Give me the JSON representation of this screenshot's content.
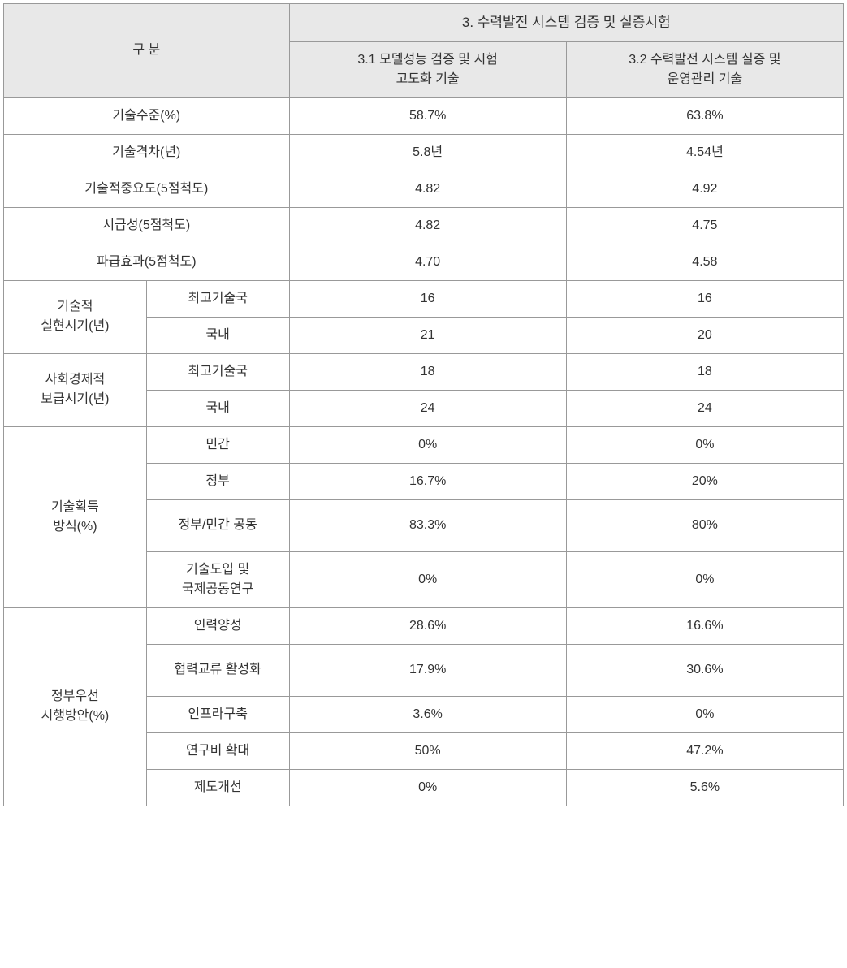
{
  "table": {
    "header_colors": {
      "bg": "#e8e8e8",
      "border": "#999999",
      "text": "#333333"
    },
    "col_widths": [
      "17%",
      "17%",
      "33%",
      "33%"
    ],
    "font_family": "Malgun Gothic",
    "font_size_base": 16,
    "row_header_span": "구  분",
    "group_header": "3. 수력발전 시스템 검증 및 실증시험",
    "col_headers": {
      "c1": "3.1 모델성능 검증 및 시험\n고도화 기술",
      "c2": "3.2 수력발전 시스템 실증 및\n운영관리 기술"
    },
    "rows": {
      "tech_level": {
        "label": "기술수준(%)",
        "v1": "58.7%",
        "v2": "63.8%"
      },
      "tech_gap": {
        "label": "기술격차(년)",
        "v1": "5.8년",
        "v2": "4.54년"
      },
      "tech_importance": {
        "label": "기술적중요도(5점척도)",
        "v1": "4.82",
        "v2": "4.92"
      },
      "urgency": {
        "label": "시급성(5점척도)",
        "v1": "4.82",
        "v2": "4.75"
      },
      "ripple": {
        "label": "파급효과(5점척도)",
        "v1": "4.70",
        "v2": "4.58"
      },
      "tech_realize": {
        "label": "기술적\n실현시기(년)",
        "sub1": {
          "label": "최고기술국",
          "v1": "16",
          "v2": "16"
        },
        "sub2": {
          "label": "국내",
          "v1": "21",
          "v2": "20"
        }
      },
      "socio_supply": {
        "label": "사회경제적\n보급시기(년)",
        "sub1": {
          "label": "최고기술국",
          "v1": "18",
          "v2": "18"
        },
        "sub2": {
          "label": "국내",
          "v1": "24",
          "v2": "24"
        }
      },
      "tech_acquire": {
        "label": "기술획득\n방식(%)",
        "sub1": {
          "label": "민간",
          "v1": "0%",
          "v2": "0%"
        },
        "sub2": {
          "label": "정부",
          "v1": "16.7%",
          "v2": "20%"
        },
        "sub3": {
          "label": "정부/민간 공동",
          "v1": "83.3%",
          "v2": "80%"
        },
        "sub4": {
          "label": "기술도입 및\n국제공동연구",
          "v1": "0%",
          "v2": "0%"
        }
      },
      "gov_priority": {
        "label": "정부우선\n시행방안(%)",
        "sub1": {
          "label": "인력양성",
          "v1": "28.6%",
          "v2": "16.6%"
        },
        "sub2": {
          "label": "협력교류 활성화",
          "v1": "17.9%",
          "v2": "30.6%"
        },
        "sub3": {
          "label": "인프라구축",
          "v1": "3.6%",
          "v2": "0%"
        },
        "sub4": {
          "label": "연구비 확대",
          "v1": "50%",
          "v2": "47.2%"
        },
        "sub5": {
          "label": "제도개선",
          "v1": "0%",
          "v2": "5.6%"
        }
      }
    }
  }
}
